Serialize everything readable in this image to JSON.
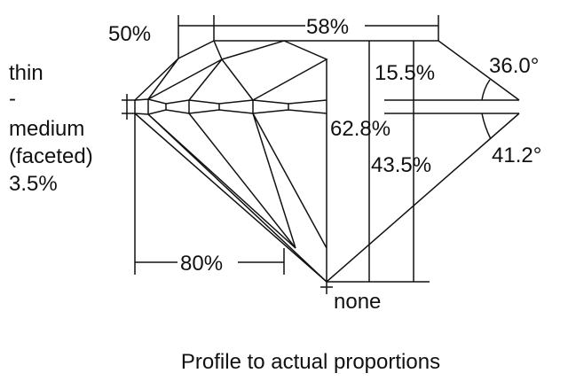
{
  "labels": {
    "crown_star_ratio": "50%",
    "table": "58%",
    "crown_height": "15.5%",
    "crown_angle": "36.0°",
    "total_depth": "62.8%",
    "pavilion_depth": "43.5%",
    "pavilion_angle": "41.2°",
    "culet": "none",
    "lower_half": "80%",
    "girdle": [
      "thin",
      "-",
      "medium",
      "(faceted)",
      "3.5%"
    ]
  },
  "caption": "Profile to actual proportions",
  "colors": {
    "line": "#111111",
    "background": "#ffffff"
  }
}
